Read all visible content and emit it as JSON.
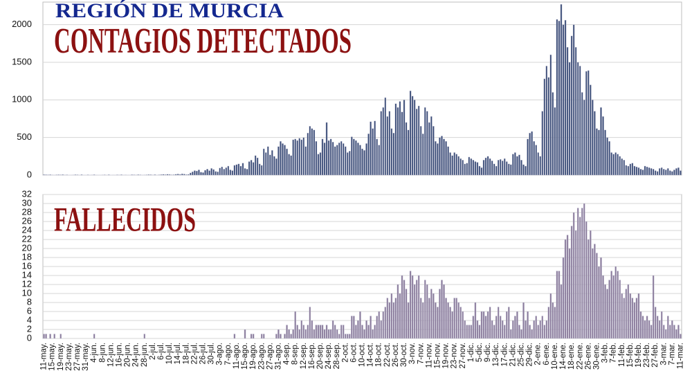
{
  "header": "REGIÓN DE MURCIA",
  "chart_data": [
    {
      "type": "bar",
      "title": "CONTAGIOS DETECTADOS",
      "color": "#3b4d78",
      "ylim": [
        0,
        2300
      ],
      "yticks": [
        0,
        500,
        1000,
        1500,
        2000
      ],
      "grid": true,
      "values": [
        8,
        6,
        5,
        7,
        4,
        3,
        5,
        6,
        5,
        8,
        4,
        5,
        2,
        3,
        4,
        6,
        5,
        3,
        7,
        2,
        2,
        5,
        3,
        4,
        6,
        3,
        2,
        2,
        4,
        5,
        3,
        6,
        2,
        1,
        3,
        5,
        4,
        6,
        3,
        4,
        2,
        2,
        6,
        5,
        4,
        7,
        5,
        3,
        4,
        5,
        8,
        6,
        4,
        7,
        3,
        5,
        8,
        10,
        7,
        12,
        9,
        5,
        6,
        12,
        15,
        10,
        18,
        14,
        8,
        10,
        30,
        45,
        60,
        55,
        70,
        40,
        35,
        65,
        80,
        60,
        90,
        75,
        50,
        45,
        95,
        110,
        80,
        100,
        120,
        70,
        60,
        130,
        140,
        150,
        120,
        160,
        90,
        80,
        180,
        200,
        170,
        260,
        230,
        150,
        130,
        350,
        300,
        380,
        270,
        330,
        250,
        220,
        380,
        450,
        420,
        400,
        350,
        280,
        260,
        470,
        480,
        460,
        490,
        470,
        500,
        380,
        560,
        650,
        620,
        600,
        450,
        280,
        300,
        480,
        430,
        700,
        460,
        480,
        440,
        380,
        400,
        430,
        450,
        420,
        380,
        300,
        320,
        510,
        480,
        460,
        430,
        400,
        350,
        330,
        420,
        550,
        710,
        620,
        720,
        480,
        400,
        850,
        900,
        1030,
        780,
        850,
        620,
        560,
        950,
        900,
        980,
        840,
        1000,
        700,
        600,
        1120,
        1050,
        1000,
        880,
        920,
        650,
        550,
        900,
        850,
        700,
        780,
        650,
        450,
        420,
        500,
        520,
        480,
        450,
        380,
        300,
        260,
        300,
        280,
        250,
        220,
        200,
        150,
        160,
        240,
        220,
        200,
        180,
        170,
        120,
        100,
        200,
        230,
        250,
        220,
        190,
        150,
        120,
        200,
        210,
        190,
        220,
        180,
        150,
        140,
        280,
        300,
        250,
        270,
        200,
        140,
        120,
        480,
        560,
        580,
        450,
        400,
        300,
        250,
        850,
        1280,
        1450,
        1300,
        1600,
        1100,
        900,
        2070,
        2050,
        2270,
        2000,
        2060,
        1700,
        1500,
        1850,
        2000,
        1700,
        1500,
        1450,
        1100,
        1000,
        1380,
        1390,
        1200,
        1000,
        850,
        620,
        600,
        900,
        780,
        600,
        500,
        450,
        300,
        280,
        300,
        280,
        250,
        220,
        200,
        130,
        120,
        150,
        160,
        120,
        110,
        100,
        80,
        70,
        120,
        110,
        100,
        90,
        80,
        60,
        50,
        90,
        100,
        80,
        70,
        90,
        60,
        50,
        70,
        90,
        100,
        60
      ]
    },
    {
      "type": "bar",
      "title": "FALLECIDOS",
      "color": "#8b7b9c",
      "ylim": [
        0,
        32
      ],
      "yticks": [
        0,
        2,
        4,
        6,
        8,
        10,
        12,
        14,
        16,
        18,
        20,
        22,
        24,
        26,
        28,
        30,
        32
      ],
      "grid": true,
      "categories": [
        "11-may.",
        null,
        null,
        null,
        "15-may.",
        null,
        null,
        null,
        "19-may.",
        null,
        null,
        null,
        "23-may.",
        null,
        null,
        null,
        "27-may.",
        null,
        null,
        null,
        "31-may.",
        null,
        null,
        null,
        "4-jun.",
        null,
        null,
        null,
        "8-jun.",
        null,
        null,
        null,
        "12-jun.",
        null,
        null,
        null,
        "16-jun.",
        null,
        null,
        null,
        "20-jun.",
        null,
        null,
        null,
        "24-jun.",
        null,
        null,
        null,
        "28-jun.",
        null,
        null,
        null,
        "2-jul.",
        null,
        null,
        null,
        "6-jul.",
        null,
        null,
        null,
        "10-jul.",
        null,
        null,
        null,
        "14-jul.",
        null,
        null,
        null,
        "18-jul.",
        null,
        null,
        null,
        "22-jul.",
        null,
        null,
        null,
        "26-jul.",
        null,
        null,
        null,
        "30-jul.",
        null,
        null,
        null,
        "3-ago.",
        null,
        null,
        null,
        "7-ago.",
        null,
        null,
        null,
        "11-ago.",
        null,
        null,
        null,
        "15-ago.",
        null,
        null,
        null,
        "19-ago.",
        null,
        null,
        null,
        "23-ago.",
        null,
        null,
        null,
        "27-ago.",
        null,
        null,
        null,
        "31-ago.",
        null,
        null,
        null,
        "4-sep.",
        null,
        null,
        null,
        "8-sep.",
        null,
        null,
        null,
        "12-sep.",
        null,
        null,
        null,
        "16-sep.",
        null,
        null,
        null,
        "20-sep.",
        null,
        null,
        null,
        "24-sep.",
        null,
        null,
        null,
        "28-sep.",
        null,
        null,
        null,
        "2-oct.",
        null,
        null,
        null,
        "6-oct.",
        null,
        null,
        null,
        "10-oct.",
        null,
        null,
        null,
        "14-oct.",
        null,
        null,
        null,
        "18-oct.",
        null,
        null,
        null,
        "22-oct.",
        null,
        null,
        null,
        "26-oct.",
        null,
        null,
        null,
        "30-oct.",
        null,
        null,
        null,
        "3-nov.",
        null,
        null,
        null,
        "7-nov.",
        null,
        null,
        null,
        "11-nov.",
        null,
        null,
        null,
        "15-nov.",
        null,
        null,
        null,
        "19-nov.",
        null,
        null,
        null,
        "23-nov.",
        null,
        null,
        null,
        "27-nov.",
        null,
        null,
        null,
        "1-dic.",
        null,
        null,
        null,
        "5-dic.",
        null,
        null,
        null,
        "9-dic.",
        null,
        null,
        null,
        "13-dic.",
        null,
        null,
        null,
        "17-dic.",
        null,
        null,
        null,
        "21-dic.",
        null,
        null,
        null,
        "25-dic.",
        null,
        null,
        null,
        "29-dic.",
        null,
        null,
        null,
        "2-ene.",
        null,
        null,
        null,
        "6-ene.",
        null,
        null,
        null,
        "10-ene.",
        null,
        null,
        null,
        "14-ene.",
        null,
        null,
        null,
        "18-ene.",
        null,
        null,
        null,
        "22-ene.",
        null,
        null,
        null,
        "26-ene.",
        null,
        null,
        null,
        "30-ene.",
        null,
        null,
        null,
        "3-feb.",
        null,
        null,
        null,
        "7-feb.",
        null,
        null,
        null,
        "11-feb.",
        null,
        null,
        null,
        "15-feb.",
        null,
        null,
        null,
        "19-feb.",
        null,
        null,
        null,
        "23-feb.",
        null,
        null,
        null,
        "27-feb.",
        null,
        null,
        null,
        "3-mar.",
        null,
        null,
        null,
        "7-mar.",
        null,
        null,
        null,
        "11-mar."
      ],
      "values": [
        1,
        1,
        0,
        1,
        0,
        1,
        0,
        0,
        1,
        0,
        0,
        0,
        0,
        0,
        0,
        0,
        0,
        0,
        0,
        0,
        0,
        0,
        0,
        0,
        1,
        0,
        0,
        0,
        0,
        0,
        0,
        0,
        0,
        0,
        0,
        0,
        0,
        0,
        0,
        0,
        0,
        0,
        0,
        0,
        0,
        0,
        0,
        0,
        1,
        0,
        0,
        0,
        0,
        0,
        0,
        0,
        0,
        0,
        0,
        0,
        0,
        0,
        0,
        0,
        0,
        0,
        0,
        0,
        0,
        0,
        0,
        0,
        0,
        0,
        0,
        0,
        0,
        0,
        0,
        0,
        0,
        0,
        0,
        0,
        0,
        0,
        0,
        0,
        0,
        0,
        0,
        1,
        0,
        0,
        0,
        0,
        2,
        0,
        0,
        1,
        1,
        0,
        0,
        0,
        1,
        1,
        0,
        0,
        0,
        0,
        0,
        1,
        2,
        1,
        0,
        1,
        3,
        2,
        1,
        2,
        6,
        3,
        2,
        4,
        3,
        2,
        3,
        7,
        4,
        2,
        3,
        3,
        3,
        3,
        2,
        3,
        2,
        2,
        4,
        3,
        2,
        1,
        3,
        3,
        1,
        1,
        1,
        5,
        5,
        3,
        4,
        6,
        3,
        2,
        4,
        3,
        5,
        2,
        3,
        5,
        6,
        4,
        6,
        7,
        9,
        8,
        10,
        8,
        9,
        12,
        10,
        14,
        13,
        11,
        8,
        15,
        14,
        12,
        13,
        14,
        9,
        8,
        13,
        12,
        9,
        11,
        10,
        8,
        7,
        11,
        13,
        12,
        9,
        8,
        7,
        6,
        9,
        9,
        8,
        7,
        6,
        4,
        3,
        3,
        3,
        5,
        8,
        4,
        3,
        6,
        6,
        5,
        6,
        7,
        4,
        3,
        5,
        7,
        5,
        4,
        3,
        6,
        7,
        2,
        4,
        5,
        6,
        3,
        2,
        8,
        4,
        6,
        3,
        2,
        4,
        5,
        3,
        4,
        5,
        3,
        4,
        7,
        10,
        8,
        7,
        15,
        15,
        12,
        18,
        22,
        23,
        20,
        25,
        28,
        24,
        29,
        27,
        29,
        30,
        26,
        22,
        24,
        20,
        21,
        19,
        16,
        18,
        14,
        12,
        11,
        13,
        15,
        14,
        16,
        15,
        13,
        10,
        9,
        11,
        12,
        10,
        9,
        8,
        9,
        10,
        6,
        5,
        4,
        5,
        4,
        3,
        14,
        7,
        5,
        4,
        6,
        3,
        2,
        5,
        3,
        4,
        3,
        2,
        3,
        1
      ]
    }
  ]
}
